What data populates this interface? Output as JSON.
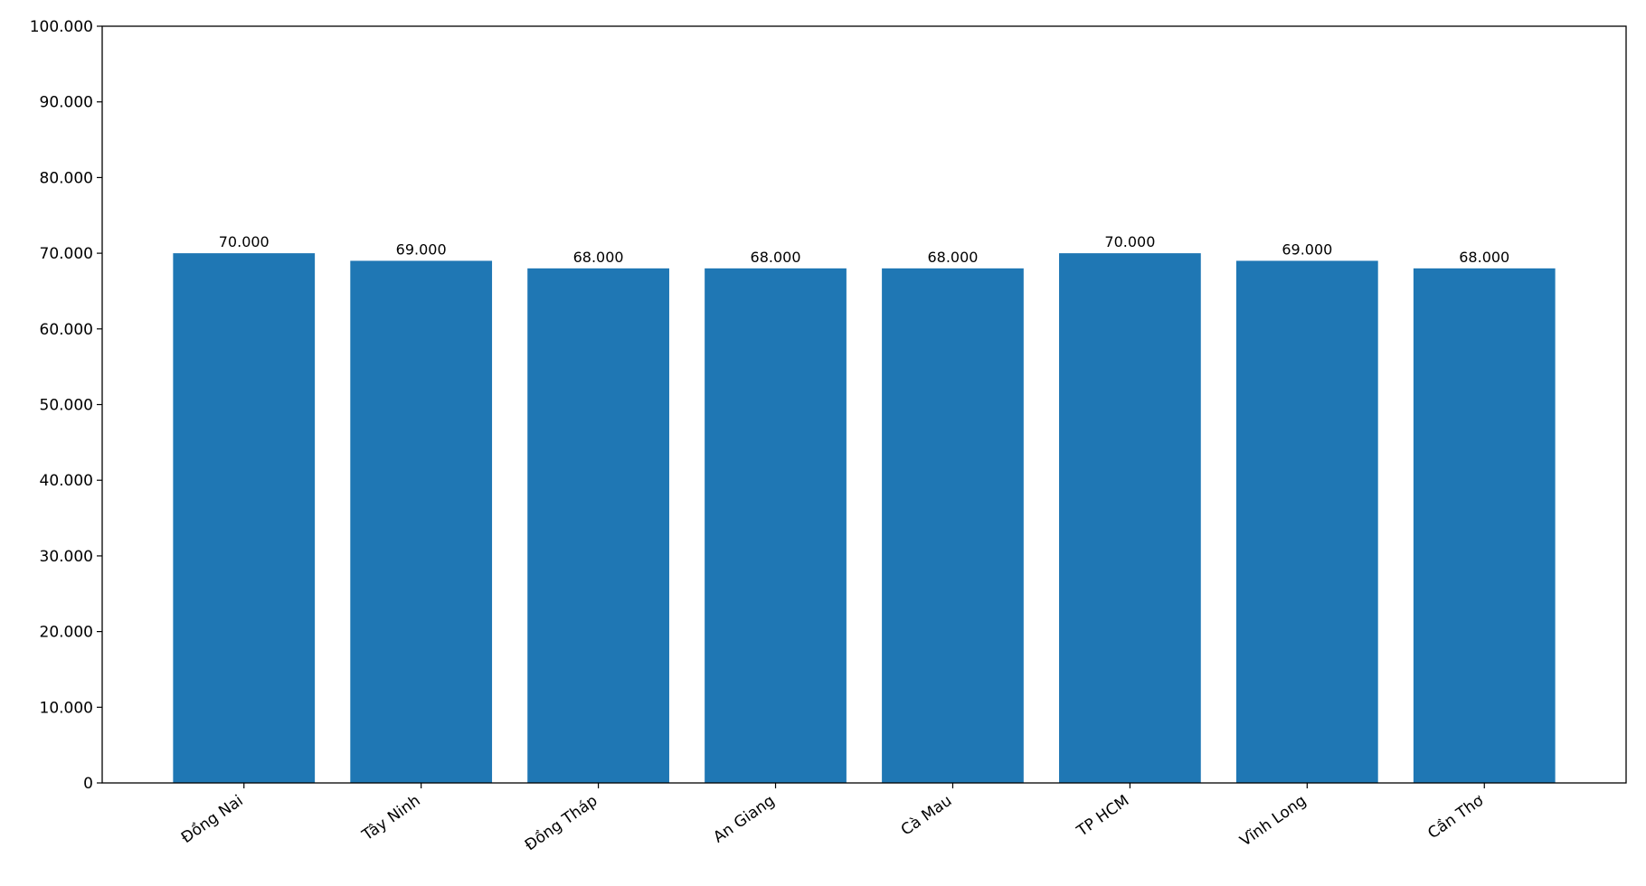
{
  "chart_data": {
    "type": "bar",
    "categories": [
      "Đồng Nai",
      "Tây Ninh",
      "Đồng Tháp",
      "An Giang",
      "Cà Mau",
      "TP HCM",
      "Vĩnh Long",
      "Cần Thơ"
    ],
    "values": [
      70000,
      69000,
      68000,
      68000,
      68000,
      70000,
      69000,
      68000
    ],
    "value_labels": [
      "70.000",
      "69.000",
      "68.000",
      "68.000",
      "68.000",
      "70.000",
      "69.000",
      "68.000"
    ],
    "color": "#1f77b4",
    "ylim": [
      0,
      100000
    ],
    "yticks": [
      0,
      {
        "value": 10000,
        "label": "10.000"
      },
      {
        "value": 20000,
        "label": "20.000"
      },
      {
        "value": 30000,
        "label": "30.000"
      },
      {
        "value": 40000,
        "label": "40.000"
      },
      {
        "value": 50000,
        "label": "50.000"
      },
      {
        "value": 60000,
        "label": "60.000"
      },
      {
        "value": 70000,
        "label": "70.000"
      },
      {
        "value": 80000,
        "label": "80.000"
      },
      {
        "value": 90000,
        "label": "90.000"
      },
      {
        "value": 100000,
        "label": "100.000"
      }
    ],
    "grid": false
  }
}
